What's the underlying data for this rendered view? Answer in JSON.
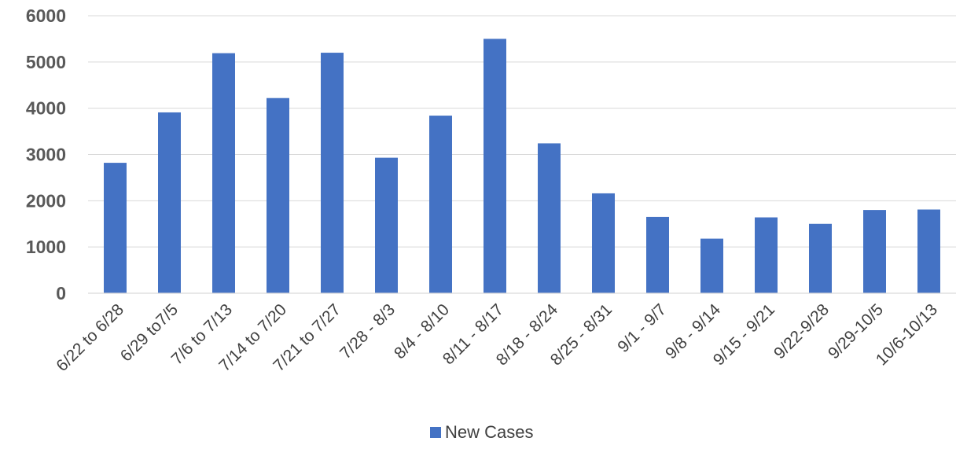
{
  "chart_data": {
    "type": "bar",
    "categories": [
      "6/22 to 6/28",
      "6/29 to7/5",
      "7/6 to 7/13",
      "7/14 to 7/20",
      "7/21 to 7/27",
      "7/28 - 8/3",
      "8/4 - 8/10",
      "8/11 - 8/17",
      "8/18 - 8/24",
      "8/25 - 8/31",
      "9/1 - 9/7",
      "9/8 - 9/14",
      "9/15 - 9/21",
      "9/22-9/28",
      "9/29-10/5",
      "10/6-10/13"
    ],
    "series": [
      {
        "name": "New Cases",
        "values": [
          2820,
          3910,
          5190,
          4220,
          5200,
          2930,
          3840,
          5500,
          3240,
          2160,
          1650,
          1180,
          1640,
          1500,
          1800,
          1810
        ]
      }
    ],
    "yticks": [
      "0",
      "1000",
      "2000",
      "3000",
      "4000",
      "5000",
      "6000"
    ],
    "ylim": [
      0,
      6000
    ],
    "grid": true,
    "legend_position": "bottom",
    "colors": {
      "bar": "#4472C4",
      "grid": "#D9D9D9"
    }
  }
}
